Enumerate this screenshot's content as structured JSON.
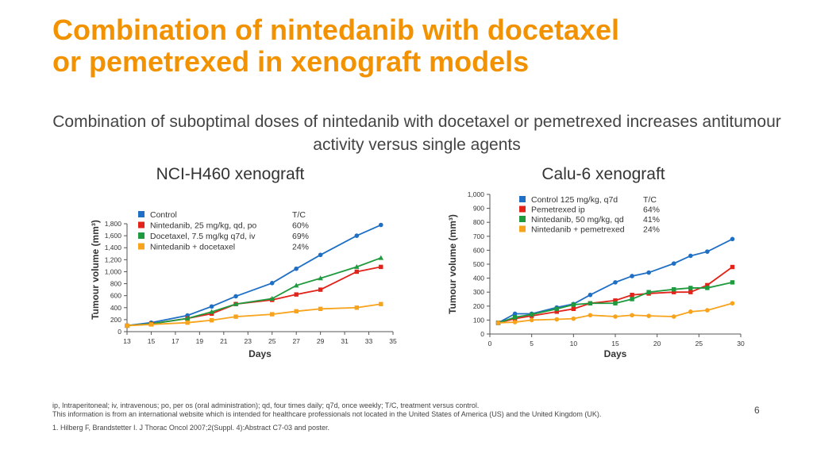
{
  "slide": {
    "title_line1": "Combination of nintedanib with docetaxel",
    "title_line2": "or pemetrexed in xenograft models",
    "subtitle": "Combination of suboptimal doses of nintedanib with docetaxel or pemetrexed increases antitumour activity versus single agents",
    "footnote_abbrev": "ip, Intraperitoneal; iv, intravenous; po, per os (oral administration); qd, four times daily; q7d, once weekly; T/C, treatment versus control.",
    "footnote_info": "This information is from an international website which is intended for healthcare professionals not located in the United States of America (US) and the United Kingdom (UK).",
    "footnote_ref": "1. Hilberg F, Brandstetter I. J Thorac Oncol 2007;2(Suppl. 4):Abstract C7-03 and poster.",
    "page_number": "6"
  },
  "colors": {
    "blue": "#1f6fc5",
    "red": "#e2231a",
    "green": "#1f9a3e",
    "orange": "#f7a31c",
    "title": "#f39200"
  },
  "chart_data": [
    {
      "type": "line",
      "title": "NCI-H460 xenograft",
      "xlabel": "Days",
      "ylabel": "Tumour volume (mm³)",
      "xlim": [
        13,
        35
      ],
      "ylim": [
        0,
        1800
      ],
      "xticks": [
        13,
        15,
        17,
        19,
        21,
        23,
        25,
        27,
        29,
        31,
        33,
        35
      ],
      "yticks": [
        0,
        200,
        400,
        600,
        800,
        1000,
        1200,
        1400,
        1600,
        1800
      ],
      "ytick_labels": [
        "0",
        "200",
        "400",
        "600",
        "800",
        "1,000",
        "1,200",
        "1,400",
        "1,600",
        "1,800"
      ],
      "legend_header": "T/C",
      "series": [
        {
          "name": "Control",
          "tc": "",
          "color": "blue",
          "marker": "circle",
          "x": [
            13,
            15,
            18,
            20,
            22,
            25,
            27,
            29,
            32,
            34
          ],
          "y": [
            100,
            150,
            270,
            420,
            590,
            810,
            1050,
            1280,
            1600,
            1780
          ]
        },
        {
          "name": "Nintedanib, 25 mg/kg, qd, po",
          "tc": "60%",
          "color": "red",
          "marker": "square",
          "x": [
            13,
            15,
            18,
            20,
            22,
            25,
            27,
            29,
            32,
            34
          ],
          "y": [
            100,
            130,
            220,
            300,
            460,
            530,
            620,
            700,
            1000,
            1080
          ]
        },
        {
          "name": "Docetaxel, 7.5 mg/kg q7d, iv",
          "tc": "69%",
          "color": "green",
          "marker": "triangle",
          "x": [
            13,
            15,
            18,
            20,
            22,
            25,
            27,
            29,
            32,
            34
          ],
          "y": [
            100,
            130,
            220,
            330,
            460,
            550,
            770,
            890,
            1080,
            1230
          ]
        },
        {
          "name": "Nintedanib + docetaxel",
          "tc": "24%",
          "color": "orange",
          "marker": "square",
          "x": [
            13,
            15,
            18,
            20,
            22,
            25,
            27,
            29,
            32,
            34
          ],
          "y": [
            100,
            120,
            150,
            190,
            250,
            290,
            340,
            380,
            400,
            460
          ]
        }
      ]
    },
    {
      "type": "line",
      "title": "Calu-6 xenograft",
      "xlabel": "Days",
      "ylabel": "Tumour volume (mm³)",
      "xlim": [
        0,
        30
      ],
      "ylim": [
        0,
        1000
      ],
      "xticks": [
        0,
        5,
        10,
        15,
        20,
        25,
        30
      ],
      "yticks": [
        0,
        100,
        200,
        300,
        400,
        500,
        600,
        700,
        800,
        900,
        1000
      ],
      "ytick_labels": [
        "0",
        "100",
        "200",
        "300",
        "400",
        "500",
        "600",
        "700",
        "800",
        "900",
        "1,000"
      ],
      "legend_header": "T/C",
      "series": [
        {
          "name": "Control 125 mg/kg, q7d",
          "tc": "",
          "color": "blue",
          "marker": "circle",
          "x": [
            1,
            3,
            5,
            8,
            10,
            12,
            15,
            17,
            19,
            22,
            24,
            26,
            29
          ],
          "y": [
            80,
            145,
            145,
            190,
            215,
            280,
            370,
            415,
            440,
            505,
            560,
            590,
            680
          ]
        },
        {
          "name": "Pemetrexed ip",
          "tc": "64%",
          "color": "red",
          "marker": "square",
          "x": [
            1,
            3,
            5,
            8,
            10,
            12,
            15,
            17,
            19,
            22,
            24,
            26,
            29
          ],
          "y": [
            80,
            110,
            130,
            160,
            180,
            220,
            240,
            280,
            290,
            300,
            300,
            350,
            480
          ]
        },
        {
          "name": "Nintedanib, 50 mg/kg, qd",
          "tc": "41%",
          "color": "green",
          "marker": "square",
          "x": [
            1,
            3,
            5,
            8,
            10,
            12,
            15,
            17,
            19,
            22,
            24,
            26,
            29
          ],
          "y": [
            80,
            120,
            140,
            180,
            210,
            220,
            220,
            250,
            300,
            320,
            330,
            330,
            370
          ]
        },
        {
          "name": "Nintedanib + pemetrexed",
          "tc": "24%",
          "color": "orange",
          "marker": "circle",
          "x": [
            1,
            3,
            5,
            8,
            10,
            12,
            15,
            17,
            19,
            22,
            24,
            26,
            29
          ],
          "y": [
            80,
            85,
            100,
            105,
            110,
            135,
            125,
            135,
            130,
            125,
            160,
            170,
            220
          ]
        }
      ]
    }
  ]
}
